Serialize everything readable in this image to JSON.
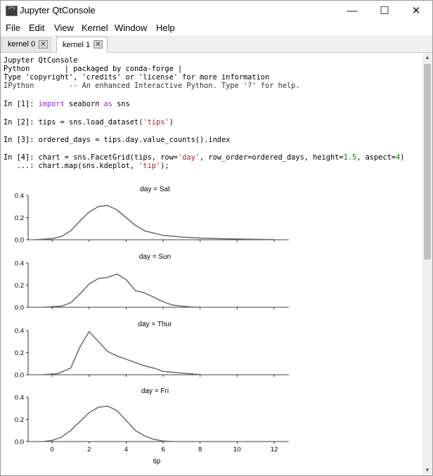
{
  "window": {
    "title": "Jupyter QtConsole",
    "icon_name": "ipython-app-icon",
    "controls": {
      "minimize": "—",
      "maximize": "☐",
      "close": "✕"
    }
  },
  "menu": [
    "File",
    "Edit",
    "View",
    "Kernel",
    "Window",
    "Help"
  ],
  "tabs": [
    {
      "label": "kernel 0",
      "active": false
    },
    {
      "label": "kernel 1",
      "active": true
    }
  ],
  "banner": [
    "Jupyter QtConsole",
    "Python        | packaged by conda-forge |",
    "Type 'copyright', 'credits' or 'license' for more information",
    "IPython        -- An enhanced Interactive Python. Type '?' for help."
  ],
  "cells": [
    {
      "prompt": "In [1]: ",
      "code": "import seaborn as sns"
    },
    {
      "prompt": "In [2]: ",
      "code": "tips = sns.load_dataset('tips')"
    },
    {
      "prompt": "In [3]: ",
      "code": "ordered_days = tips.day.value_counts().index"
    },
    {
      "prompt": "In [4]: ",
      "code": "chart = sns.FacetGrid(tips, row='day', row_order=ordered_days, height=1.5, aspect=4)"
    },
    {
      "prompt": "   ...: ",
      "code": "chart.map(sns.kdeplot, 'tip');"
    }
  ],
  "chart_data": {
    "type": "line",
    "xlabel": "tip",
    "xticks": [
      0,
      2,
      4,
      6,
      8,
      10,
      12
    ],
    "xlim": [
      -1.3,
      12.8
    ],
    "ylim": [
      0,
      0.4
    ],
    "yticks": [
      "0.0",
      "0.2",
      "0.4"
    ],
    "facets": [
      {
        "title": "day = Sat",
        "x": [
          -1,
          0,
          0.5,
          1,
          1.5,
          2,
          2.5,
          3,
          3.5,
          4,
          4.5,
          5,
          6,
          7,
          8,
          9,
          10,
          11,
          12
        ],
        "y": [
          0.0,
          0.01,
          0.03,
          0.08,
          0.17,
          0.25,
          0.3,
          0.31,
          0.27,
          0.2,
          0.13,
          0.08,
          0.04,
          0.025,
          0.015,
          0.01,
          0.007,
          0.004,
          0.002
        ]
      },
      {
        "title": "day = Sun",
        "x": [
          -0.5,
          0.5,
          1,
          1.5,
          2,
          2.5,
          3,
          3.5,
          4,
          4.5,
          5,
          5.5,
          6,
          6.5,
          7,
          7.5,
          8
        ],
        "y": [
          0.0,
          0.01,
          0.04,
          0.12,
          0.21,
          0.26,
          0.27,
          0.3,
          0.25,
          0.15,
          0.13,
          0.09,
          0.05,
          0.02,
          0.01,
          0.003,
          0.0
        ]
      },
      {
        "title": "day = Thur",
        "x": [
          -0.5,
          0.3,
          1,
          1.5,
          2,
          2.5,
          3,
          3.5,
          4,
          4.5,
          5,
          5.5,
          6,
          7,
          8
        ],
        "y": [
          0.0,
          0.01,
          0.06,
          0.25,
          0.39,
          0.3,
          0.21,
          0.17,
          0.14,
          0.11,
          0.08,
          0.06,
          0.03,
          0.015,
          0.002
        ]
      },
      {
        "title": "day = Fri",
        "x": [
          -0.5,
          0,
          0.5,
          1,
          1.5,
          2,
          2.5,
          3,
          3.5,
          4,
          4.5,
          5,
          5.5,
          6,
          6.5
        ],
        "y": [
          0.0,
          0.01,
          0.04,
          0.1,
          0.18,
          0.26,
          0.31,
          0.32,
          0.28,
          0.19,
          0.1,
          0.05,
          0.02,
          0.005,
          0.0
        ]
      }
    ],
    "line_color": "#6a6a6a"
  },
  "colors": {
    "keyword": "#8a2be2",
    "string": "#b22222",
    "number": "#008000"
  }
}
